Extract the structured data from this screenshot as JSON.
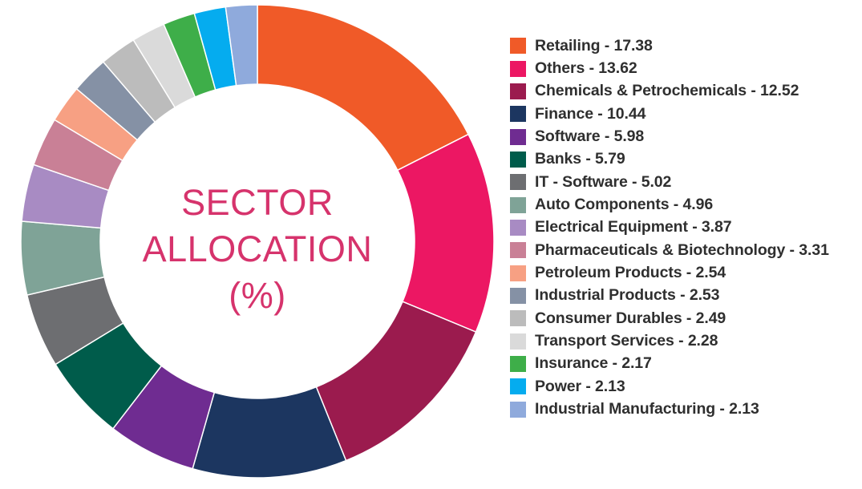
{
  "chart_data": {
    "type": "pie",
    "variant": "donut",
    "title_lines": [
      "SECTOR",
      "ALLOCATION",
      "(%)"
    ],
    "title_color": "#d6336c",
    "legend_position": "right",
    "slices": [
      {
        "label": "Retailing",
        "value": 17.38,
        "display": "Retailing - 17.38",
        "color": "#f05a28"
      },
      {
        "label": "Others",
        "value": 13.62,
        "display": "Others - 13.62",
        "color": "#ec1763"
      },
      {
        "label": "Chemicals & Petrochemicals",
        "value": 12.52,
        "display": "Chemicals & Petrochemicals - 12.52",
        "color": "#9b1b4e"
      },
      {
        "label": "Finance",
        "value": 10.44,
        "display": "Finance - 10.44",
        "color": "#1c3660"
      },
      {
        "label": "Software",
        "value": 5.98,
        "display": "Software - 5.98",
        "color": "#6f2c91"
      },
      {
        "label": "Banks",
        "value": 5.79,
        "display": "Banks - 5.79",
        "color": "#005c4b"
      },
      {
        "label": "IT - Software",
        "value": 5.02,
        "display": "IT - Software - 5.02",
        "color": "#6d6e71"
      },
      {
        "label": "Auto Components",
        "value": 4.96,
        "display": "Auto Components - 4.96",
        "color": "#7fa397"
      },
      {
        "label": "Electrical Equipment",
        "value": 3.87,
        "display": "Electrical Equipment - 3.87",
        "color": "#a88bc3"
      },
      {
        "label": "Pharmaceuticals & Biotechnology",
        "value": 3.31,
        "display": "Pharmaceuticals & Biotechnology - 3.31",
        "color": "#c98096"
      },
      {
        "label": "Petroleum Products",
        "value": 2.54,
        "display": "Petroleum Products - 2.54",
        "color": "#f7a083"
      },
      {
        "label": "Industrial Products",
        "value": 2.53,
        "display": "Industrial Products - 2.53",
        "color": "#8591a5"
      },
      {
        "label": "Consumer Durables",
        "value": 2.49,
        "display": "Consumer Durables - 2.49",
        "color": "#bcbcbc"
      },
      {
        "label": "Transport Services",
        "value": 2.28,
        "display": "Transport Services - 2.28",
        "color": "#dadada"
      },
      {
        "label": "Insurance",
        "value": 2.17,
        "display": "Insurance - 2.17",
        "color": "#3eae49"
      },
      {
        "label": "Power",
        "value": 2.13,
        "display": "Power - 2.13",
        "color": "#05acef"
      },
      {
        "label": "Industrial Manufacturing",
        "value": 2.13,
        "display": "Industrial Manufacturing - 2.13",
        "color": "#8faadc"
      }
    ]
  }
}
